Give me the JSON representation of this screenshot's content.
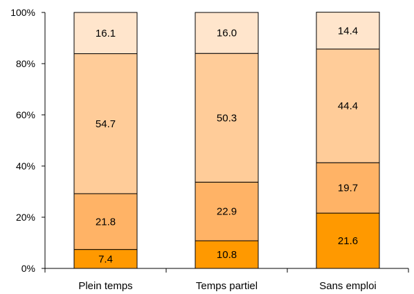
{
  "chart_data": {
    "type": "bar",
    "stacked": true,
    "percent_axis": true,
    "categories": [
      "Plein temps",
      "Temps partiel",
      "Sans emploi"
    ],
    "series": [
      {
        "color": "#ff9900",
        "values": [
          7.4,
          10.8,
          21.6
        ]
      },
      {
        "color": "#ffb366",
        "values": [
          21.8,
          22.9,
          19.7
        ]
      },
      {
        "color": "#ffcc99",
        "values": [
          54.7,
          50.3,
          44.4
        ]
      },
      {
        "color": "#ffe5cc",
        "values": [
          16.1,
          16.0,
          14.4
        ]
      }
    ],
    "y_ticks": [
      "0%",
      "20%",
      "40%",
      "60%",
      "80%",
      "100%"
    ],
    "ylim": [
      0,
      100
    ],
    "grid": false,
    "legend": "none"
  }
}
